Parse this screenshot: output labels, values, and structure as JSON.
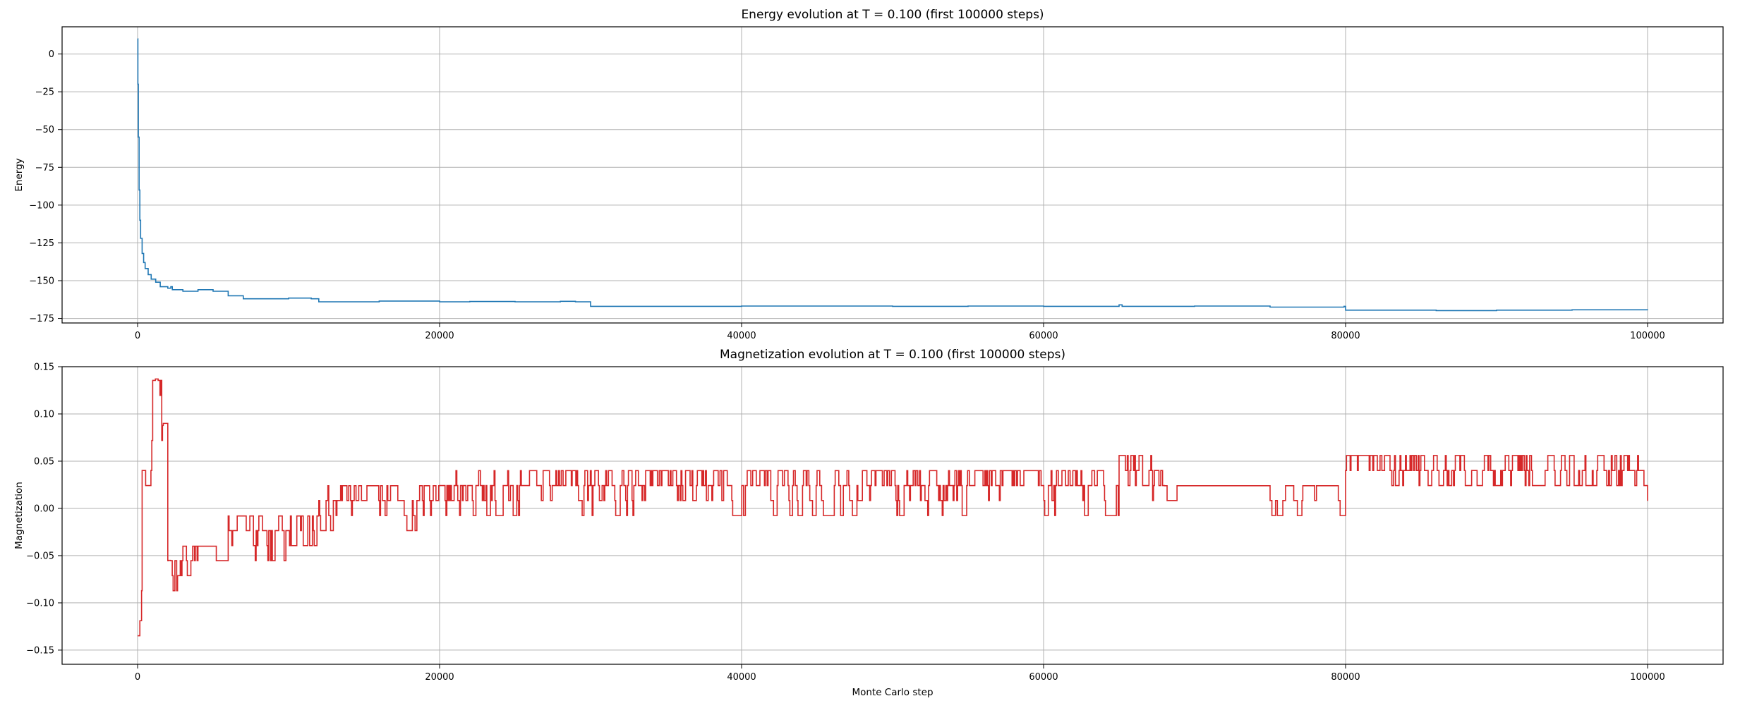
{
  "chart_data": [
    {
      "type": "line",
      "title": "Energy evolution at T = 0.100 (first 100000 steps)",
      "xlabel": "",
      "ylabel": "Energy",
      "xlim": [
        -5000,
        105000
      ],
      "ylim": [
        -178,
        18
      ],
      "x_ticks": [
        0,
        20000,
        40000,
        60000,
        80000,
        100000
      ],
      "y_ticks": [
        0,
        -25,
        -50,
        -75,
        -100,
        -125,
        -150,
        -175
      ],
      "x_tick_labels": [
        "0",
        "20000",
        "40000",
        "60000",
        "80000",
        "100000"
      ],
      "y_tick_labels": [
        "0",
        "−25",
        "−50",
        "−75",
        "−100",
        "−125",
        "−150",
        "−175"
      ],
      "grid": true,
      "series": [
        {
          "color": "#1f77b4",
          "step": true,
          "points": [
            [
              0,
              10
            ],
            [
              20,
              -20
            ],
            [
              50,
              -55
            ],
            [
              100,
              -90
            ],
            [
              150,
              -110
            ],
            [
              200,
              -122
            ],
            [
              300,
              -132
            ],
            [
              400,
              -138
            ],
            [
              500,
              -142
            ],
            [
              700,
              -146
            ],
            [
              900,
              -149
            ],
            [
              1200,
              -151
            ],
            [
              1500,
              -154
            ],
            [
              2000,
              -155
            ],
            [
              2200,
              -154
            ],
            [
              2300,
              -156
            ],
            [
              3000,
              -157
            ],
            [
              4000,
              -156
            ],
            [
              5000,
              -157
            ],
            [
              6000,
              -160
            ],
            [
              7000,
              -162
            ],
            [
              9000,
              -162
            ],
            [
              10000,
              -161.5
            ],
            [
              11500,
              -162
            ],
            [
              12000,
              -164
            ],
            [
              14000,
              -164
            ],
            [
              16000,
              -163.5
            ],
            [
              20000,
              -164
            ],
            [
              22000,
              -163.8
            ],
            [
              25000,
              -164
            ],
            [
              28000,
              -163.7
            ],
            [
              29000,
              -164
            ],
            [
              30000,
              -167
            ],
            [
              40000,
              -166.8
            ],
            [
              50000,
              -167
            ],
            [
              55000,
              -166.8
            ],
            [
              60000,
              -167
            ],
            [
              65000,
              -166
            ],
            [
              65200,
              -167
            ],
            [
              70000,
              -166.8
            ],
            [
              75000,
              -167.5
            ],
            [
              79900,
              -167
            ],
            [
              80000,
              -169.5
            ],
            [
              86000,
              -169.8
            ],
            [
              90000,
              -169.5
            ],
            [
              95000,
              -169.3
            ],
            [
              100000,
              -169.5
            ]
          ]
        }
      ]
    },
    {
      "type": "line",
      "title": "Magnetization evolution at T = 0.100 (first 100000 steps)",
      "xlabel": "Monte Carlo step",
      "ylabel": "Magnetization",
      "xlim": [
        -5000,
        105000
      ],
      "ylim": [
        -0.165,
        0.15
      ],
      "x_ticks": [
        0,
        20000,
        40000,
        60000,
        80000,
        100000
      ],
      "y_ticks": [
        0.15,
        0.1,
        0.05,
        0.0,
        -0.05,
        -0.1,
        -0.15
      ],
      "x_tick_labels": [
        "0",
        "20000",
        "40000",
        "60000",
        "80000",
        "100000"
      ],
      "y_tick_labels": [
        "0.15",
        "0.10",
        "0.05",
        "0.00",
        "−0.05",
        "−0.10",
        "−0.15"
      ],
      "grid": true,
      "series": [
        {
          "color": "#d62728",
          "step": true,
          "segments": [
            {
              "x0": 0,
              "x1": 300,
              "base": -0.15,
              "amp": 0.05,
              "flip": 0.6,
              "lo": -0.155,
              "hi": -0.04
            },
            {
              "x0": 300,
              "x1": 1000,
              "base": 0.06,
              "amp": 0.04,
              "flip": 0.7,
              "lo": 0.01,
              "hi": 0.105
            },
            {
              "x0": 1000,
              "x1": 1600,
              "base": 0.11,
              "amp": 0.03,
              "flip": 0.6,
              "lo": 0.08,
              "hi": 0.137
            },
            {
              "x0": 1600,
              "x1": 2000,
              "base": 0.075,
              "amp": 0.015,
              "flip": 0.6,
              "lo": 0.055,
              "hi": 0.09
            },
            {
              "x0": 2000,
              "x1": 3000,
              "base": -0.075,
              "amp": 0.015,
              "flip": 0.7,
              "lo": -0.09,
              "hi": -0.055
            },
            {
              "x0": 3000,
              "x1": 4000,
              "base": -0.055,
              "amp": 0.015,
              "flip": 0.6,
              "lo": -0.072,
              "hi": -0.04
            },
            {
              "x0": 4000,
              "x1": 6000,
              "base": -0.055,
              "amp": 0.012,
              "flip": 0.15,
              "lo": -0.072,
              "hi": -0.04
            },
            {
              "x0": 6000,
              "x1": 10000,
              "base": -0.03,
              "amp": 0.02,
              "flip": 0.7,
              "lo": -0.057,
              "hi": -0.008
            },
            {
              "x0": 10000,
              "x1": 12000,
              "base": -0.02,
              "amp": 0.015,
              "flip": 0.5,
              "lo": -0.04,
              "hi": -0.008
            },
            {
              "x0": 12000,
              "x1": 20000,
              "base": 0.005,
              "amp": 0.018,
              "flip": 0.6,
              "lo": -0.025,
              "hi": 0.024
            },
            {
              "x0": 20000,
              "x1": 28000,
              "base": 0.01,
              "amp": 0.016,
              "flip": 0.55,
              "lo": -0.008,
              "hi": 0.04
            },
            {
              "x0": 28000,
              "x1": 48000,
              "base": 0.022,
              "amp": 0.016,
              "flip": 0.6,
              "lo": -0.008,
              "hi": 0.04
            },
            {
              "x0": 48000,
              "x1": 65000,
              "base": 0.022,
              "amp": 0.016,
              "flip": 0.6,
              "lo": -0.008,
              "hi": 0.04
            },
            {
              "x0": 65000,
              "x1": 68000,
              "base": 0.015,
              "amp": 0.02,
              "flip": 0.5,
              "lo": -0.008,
              "hi": 0.056
            },
            {
              "x0": 68000,
              "x1": 75000,
              "base": 0.008,
              "amp": 0.01,
              "flip": 0.1,
              "lo": -0.008,
              "hi": 0.024
            },
            {
              "x0": 75000,
              "x1": 80000,
              "base": 0.008,
              "amp": 0.016,
              "flip": 0.45,
              "lo": -0.008,
              "hi": 0.024
            },
            {
              "x0": 80000,
              "x1": 100000,
              "base": 0.032,
              "amp": 0.02,
              "flip": 0.6,
              "lo": 0.008,
              "hi": 0.056
            }
          ]
        }
      ]
    }
  ]
}
